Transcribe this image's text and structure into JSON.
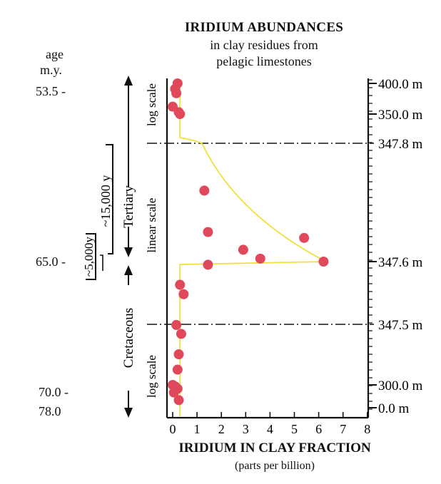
{
  "title_lines": [
    "IRIDIUM ABUNDANCES",
    "in clay residues from",
    "pelagic limestones"
  ],
  "chart_data": {
    "type": "scatter",
    "xlabel": "IRIDIUM IN CLAY FRACTION",
    "xunit": "(parts per billion)",
    "xlim": [
      0,
      8
    ],
    "x_ticks": [
      "0",
      "1",
      "2",
      "3",
      "4",
      "5",
      "6",
      "7",
      "8"
    ],
    "sections": [
      {
        "name": "upper",
        "scale_label": "log scale",
        "depth_range": [
          347.8,
          400.0
        ]
      },
      {
        "name": "middle",
        "scale_label": "linear scale",
        "depth_range": [
          347.5,
          347.8
        ]
      },
      {
        "name": "lower",
        "scale_label": "log scale",
        "depth_range": [
          0.0,
          347.5
        ]
      }
    ],
    "right_axis_labels": [
      "400.0 m",
      "350.0 m",
      "347.8 m",
      "347.6 m",
      "347.5 m",
      "300.0 m",
      "0.0 m"
    ],
    "left_labels": {
      "age_header": [
        "age",
        "m.y."
      ],
      "ages": [
        "53.5 -",
        "65.0 -",
        "70.0 -",
        "78.0"
      ],
      "tertiary": "Tertiary",
      "cretaceous": "Cretaceous",
      "interval_15000": "~15,000 y",
      "interval_5000": "~5,000y"
    },
    "points_upper": [
      {
        "x": 0.2,
        "d": 400.0
      },
      {
        "x": 0.1,
        "d": 391.0
      },
      {
        "x": 0.15,
        "d": 384.0
      },
      {
        "x": 0.0,
        "d": 362.0
      },
      {
        "x": 0.25,
        "d": 353.0
      },
      {
        "x": 0.3,
        "d": 350.0
      }
    ],
    "points_middle": [
      {
        "x": 1.3,
        "d": 347.72
      },
      {
        "x": 1.45,
        "d": 347.65
      },
      {
        "x": 5.4,
        "d": 347.64
      },
      {
        "x": 2.9,
        "d": 347.62
      },
      {
        "x": 3.6,
        "d": 347.605
      },
      {
        "x": 6.2,
        "d": 347.6
      },
      {
        "x": 1.45,
        "d": 347.595
      },
      {
        "x": 0.3,
        "d": 347.563
      },
      {
        "x": 0.45,
        "d": 347.548
      }
    ],
    "points_lower": [
      {
        "x": 0.15,
        "d": 347.0
      },
      {
        "x": 0.35,
        "d": 340.0
      },
      {
        "x": 0.25,
        "d": 324.0
      },
      {
        "x": 0.2,
        "d": 312.0
      },
      {
        "x": 0.0,
        "d": 300.0
      },
      {
        "x": 0.1,
        "d": 280.0
      },
      {
        "x": 0.2,
        "d": 250.0
      },
      {
        "x": 0.1,
        "d": 230.0
      },
      {
        "x": 0.05,
        "d": 200.0
      },
      {
        "x": 0.25,
        "d": 100.0
      }
    ],
    "curve_color": "#f0e03a",
    "point_color": "#e0485c",
    "dash_color": "#111111"
  }
}
